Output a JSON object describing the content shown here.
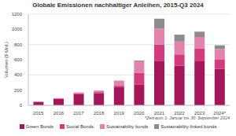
{
  "chart_data": {
    "type": "bar",
    "title": "Globale Emissionen nachhaltiger Anleihen, 2015-Q3 2024",
    "y_label": "Volumen ($ Mrd.)",
    "footnote": "*Zeitraum 1. Januar bis 30. September 2024",
    "categories": [
      "2015",
      "2016",
      "2017",
      "2018",
      "2019",
      "2020",
      "2021",
      "2022",
      "2023",
      "2024*"
    ],
    "series": [
      {
        "name": "Green Bonds",
        "color": "#a3165a",
        "values": [
          45,
          85,
          150,
          160,
          240,
          270,
          580,
          520,
          580,
          480
        ]
      },
      {
        "name": "Social Bonds",
        "color": "#d23c7c",
        "values": [
          2,
          5,
          10,
          15,
          20,
          160,
          220,
          150,
          170,
          120
        ]
      },
      {
        "name": "Sustainability bonds",
        "color": "#e382ab",
        "values": [
          3,
          5,
          10,
          20,
          60,
          150,
          210,
          170,
          150,
          140
        ]
      },
      {
        "name": "Sustainability-linked bonds",
        "color": "#8c8c8c",
        "values": [
          0,
          0,
          0,
          0,
          5,
          10,
          130,
          90,
          70,
          50
        ]
      }
    ],
    "ylim": [
      0,
      1200
    ],
    "yticks": [
      0,
      200,
      400,
      600,
      800,
      1000,
      1200
    ],
    "stacked": true,
    "grid": true,
    "legend": "bottom"
  }
}
